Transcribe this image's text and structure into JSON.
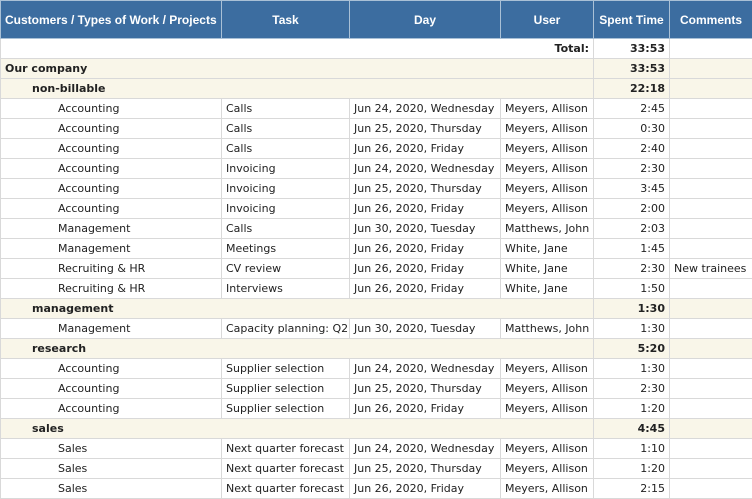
{
  "headers": {
    "customer": "Customers / Types of Work / Projects",
    "task": "Task",
    "day": "Day",
    "user": "User",
    "spent": "Spent Time",
    "comments": "Comments"
  },
  "total": {
    "label": "Total:",
    "value": "33:53"
  },
  "company": {
    "name": "Our company",
    "value": "33:53"
  },
  "groups": [
    {
      "name": "non-billable",
      "value": "22:18",
      "rows": [
        {
          "project": "Accounting",
          "task": "Calls",
          "day": "Jun 24, 2020, Wednesday",
          "user": "Meyers, Allison",
          "time": "2:45",
          "comment": ""
        },
        {
          "project": "Accounting",
          "task": "Calls",
          "day": "Jun 25, 2020, Thursday",
          "user": "Meyers, Allison",
          "time": "0:30",
          "comment": ""
        },
        {
          "project": "Accounting",
          "task": "Calls",
          "day": "Jun 26, 2020, Friday",
          "user": "Meyers, Allison",
          "time": "2:40",
          "comment": ""
        },
        {
          "project": "Accounting",
          "task": "Invoicing",
          "day": "Jun 24, 2020, Wednesday",
          "user": "Meyers, Allison",
          "time": "2:30",
          "comment": ""
        },
        {
          "project": "Accounting",
          "task": "Invoicing",
          "day": "Jun 25, 2020, Thursday",
          "user": "Meyers, Allison",
          "time": "3:45",
          "comment": ""
        },
        {
          "project": "Accounting",
          "task": "Invoicing",
          "day": "Jun 26, 2020, Friday",
          "user": "Meyers, Allison",
          "time": "2:00",
          "comment": ""
        },
        {
          "project": "Management",
          "task": "Calls",
          "day": "Jun 30, 2020, Tuesday",
          "user": "Matthews, John",
          "time": "2:03",
          "comment": ""
        },
        {
          "project": "Management",
          "task": "Meetings",
          "day": "Jun 26, 2020, Friday",
          "user": "White, Jane",
          "time": "1:45",
          "comment": ""
        },
        {
          "project": "Recruiting & HR",
          "task": "CV review",
          "day": "Jun 26, 2020, Friday",
          "user": "White, Jane",
          "time": "2:30",
          "comment": "New trainees"
        },
        {
          "project": "Recruiting & HR",
          "task": "Interviews",
          "day": "Jun 26, 2020, Friday",
          "user": "White, Jane",
          "time": "1:50",
          "comment": ""
        }
      ]
    },
    {
      "name": "management",
      "value": "1:30",
      "rows": [
        {
          "project": "Management",
          "task": "Capacity planning: Q2",
          "day": "Jun 30, 2020, Tuesday",
          "user": "Matthews, John",
          "time": "1:30",
          "comment": ""
        }
      ]
    },
    {
      "name": "research",
      "value": "5:20",
      "rows": [
        {
          "project": "Accounting",
          "task": "Supplier selection",
          "day": "Jun 24, 2020, Wednesday",
          "user": "Meyers, Allison",
          "time": "1:30",
          "comment": ""
        },
        {
          "project": "Accounting",
          "task": "Supplier selection",
          "day": "Jun 25, 2020, Thursday",
          "user": "Meyers, Allison",
          "time": "2:30",
          "comment": ""
        },
        {
          "project": "Accounting",
          "task": "Supplier selection",
          "day": "Jun 26, 2020, Friday",
          "user": "Meyers, Allison",
          "time": "1:20",
          "comment": ""
        }
      ]
    },
    {
      "name": "sales",
      "value": "4:45",
      "rows": [
        {
          "project": "Sales",
          "task": "Next quarter forecast",
          "day": "Jun 24, 2020, Wednesday",
          "user": "Meyers, Allison",
          "time": "1:10",
          "comment": ""
        },
        {
          "project": "Sales",
          "task": "Next quarter forecast",
          "day": "Jun 25, 2020, Thursday",
          "user": "Meyers, Allison",
          "time": "1:20",
          "comment": ""
        },
        {
          "project": "Sales",
          "task": "Next quarter forecast",
          "day": "Jun 26, 2020, Friday",
          "user": "Meyers, Allison",
          "time": "2:15",
          "comment": ""
        }
      ]
    }
  ]
}
